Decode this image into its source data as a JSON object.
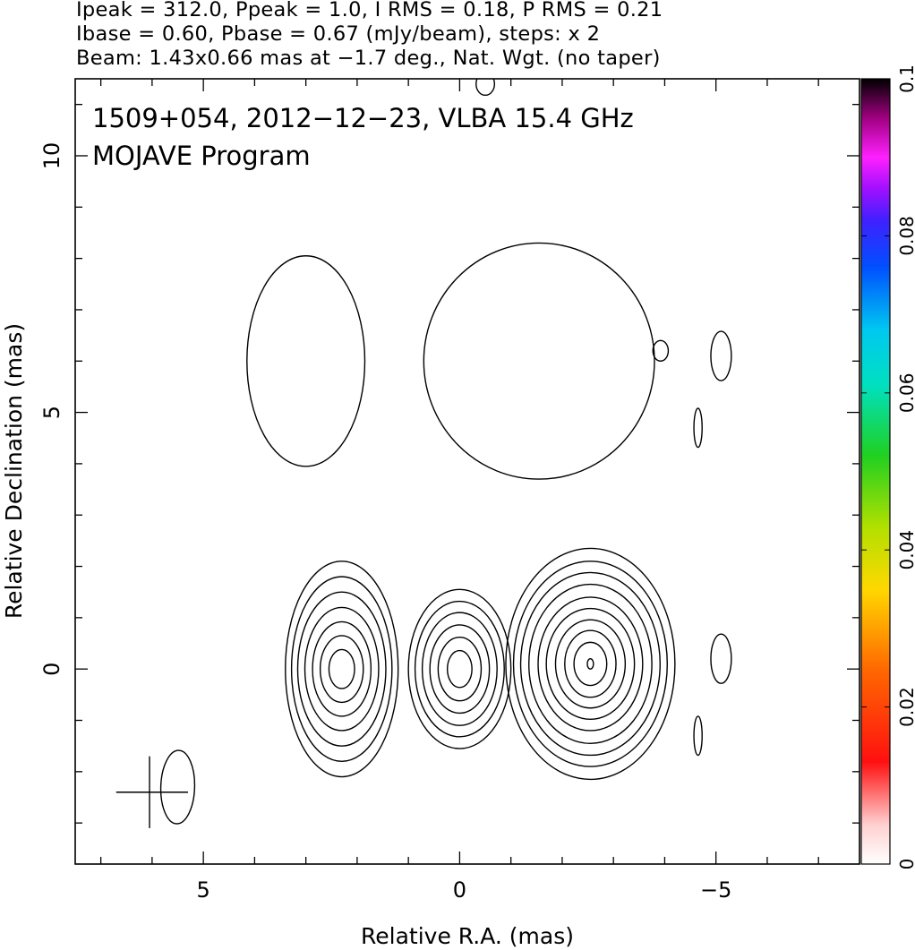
{
  "header": {
    "line1": "Ipeak = 312.0, Ppeak = 1.0, I RMS = 0.18, P RMS = 0.21",
    "line2": "Ibase = 0.60, Pbase = 0.67 (mJy/beam), steps: x 2",
    "line3": "Beam: 1.43x0.66 mas at −1.7 deg., Nat. Wgt. (no taper)"
  },
  "chart_data": {
    "type": "contour",
    "title": "1509+054, 2012−12−23, VLBA 15.4 GHz",
    "subtitle": "MOJAVE Program",
    "xlabel": "Relative R.A. (mas)",
    "ylabel": "Relative Declination (mas)",
    "xlim": [
      7.5,
      -7.8
    ],
    "ylim": [
      -3.8,
      11.5
    ],
    "x_ticks": [
      5,
      0,
      -5
    ],
    "x_tick_labels": [
      "5",
      "0",
      "−5"
    ],
    "y_ticks": [
      0,
      5,
      10
    ],
    "y_tick_labels": [
      "0",
      "5",
      "10"
    ],
    "colorbar": {
      "range": [
        0,
        0.1
      ],
      "tick_values": [
        0,
        0.02,
        0.04,
        0.06,
        0.08,
        0.1
      ],
      "tick_labels": [
        "0",
        "0.02",
        "0.04",
        "0.06",
        "0.08",
        "0.1"
      ]
    },
    "peak_intensity_mJy_per_beam": 312.0,
    "base_contour_mJy_per_beam": 0.6,
    "contour_step_factor": 2,
    "beam": {
      "major_mas": 1.43,
      "minor_mas": 0.66,
      "pa_deg": -1.7,
      "center": [
        5.5,
        -2.3
      ]
    },
    "components": [
      {
        "name": "upper-left lobe",
        "center": [
          3.0,
          6.0
        ],
        "contours": [
          {
            "rx": 1.15,
            "ry": 2.05
          }
        ]
      },
      {
        "name": "upper-right lobe",
        "center": [
          -1.55,
          6.0
        ],
        "contours": [
          {
            "rx": 2.25,
            "ry": 2.3
          }
        ]
      },
      {
        "name": "lower-left component",
        "center": [
          2.3,
          0.0
        ],
        "contours": [
          {
            "rx": 1.1,
            "ry": 2.1
          },
          {
            "rx": 0.98,
            "ry": 1.8
          },
          {
            "rx": 0.86,
            "ry": 1.5
          },
          {
            "rx": 0.72,
            "ry": 1.2
          },
          {
            "rx": 0.57,
            "ry": 0.92
          },
          {
            "rx": 0.42,
            "ry": 0.65
          },
          {
            "rx": 0.25,
            "ry": 0.38
          }
        ]
      },
      {
        "name": "lower-middle component",
        "center": [
          0.0,
          0.0
        ],
        "contours": [
          {
            "rx": 1.0,
            "ry": 1.55
          },
          {
            "rx": 0.87,
            "ry": 1.32
          },
          {
            "rx": 0.73,
            "ry": 1.1
          },
          {
            "rx": 0.58,
            "ry": 0.86
          },
          {
            "rx": 0.42,
            "ry": 0.62
          },
          {
            "rx": 0.24,
            "ry": 0.36
          }
        ]
      },
      {
        "name": "lower-right core",
        "center": [
          -2.55,
          0.1
        ],
        "contours": [
          {
            "rx": 1.65,
            "ry": 2.25
          },
          {
            "rx": 1.5,
            "ry": 2.0
          },
          {
            "rx": 1.36,
            "ry": 1.78
          },
          {
            "rx": 1.2,
            "ry": 1.55
          },
          {
            "rx": 1.02,
            "ry": 1.3
          },
          {
            "rx": 0.86,
            "ry": 1.08
          },
          {
            "rx": 0.68,
            "ry": 0.86
          },
          {
            "rx": 0.5,
            "ry": 0.65
          },
          {
            "rx": 0.32,
            "ry": 0.42
          },
          {
            "rx": 0.06,
            "ry": 0.1
          }
        ]
      },
      {
        "name": "small blob upper",
        "center": [
          -3.92,
          6.2
        ],
        "contours": [
          {
            "rx": 0.15,
            "ry": 0.2
          }
        ]
      },
      {
        "name": "small blob right upper",
        "center": [
          -5.1,
          6.1
        ],
        "contours": [
          {
            "rx": 0.2,
            "ry": 0.48
          }
        ]
      },
      {
        "name": "small blob right sliver",
        "center": [
          -4.65,
          4.7
        ],
        "contours": [
          {
            "rx": 0.08,
            "ry": 0.38
          }
        ]
      },
      {
        "name": "small blob right lower",
        "center": [
          -5.1,
          0.2
        ],
        "contours": [
          {
            "rx": 0.2,
            "ry": 0.48
          }
        ]
      },
      {
        "name": "small blob right lower sliver",
        "center": [
          -4.65,
          -1.3
        ],
        "contours": [
          {
            "rx": 0.08,
            "ry": 0.38
          }
        ]
      },
      {
        "name": "top edge blob",
        "center": [
          -0.5,
          11.4
        ],
        "contours": [
          {
            "rx": 0.18,
            "ry": 0.22
          }
        ]
      }
    ]
  }
}
